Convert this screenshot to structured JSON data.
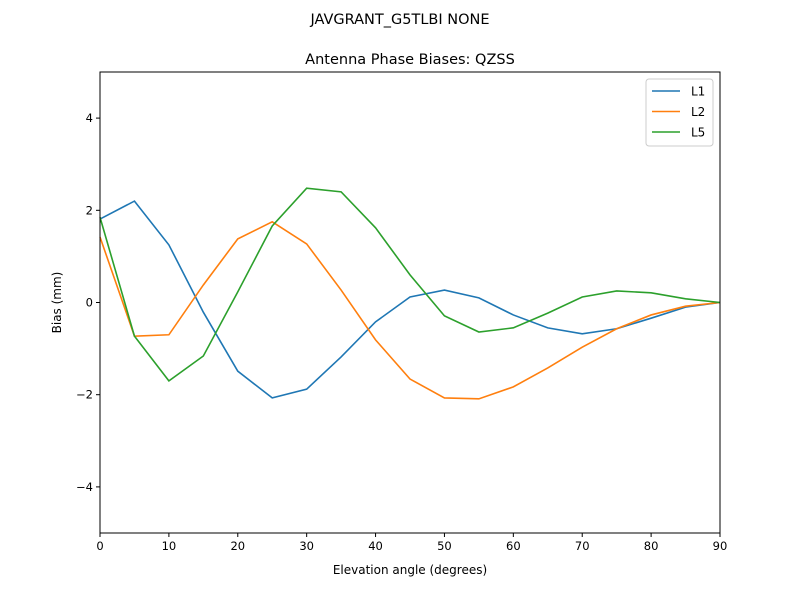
{
  "suptitle": "JAVGRANT_G5TLBI NONE",
  "chart_data": {
    "type": "line",
    "title": "Antenna Phase Biases: QZSS",
    "xlabel": "Elevation angle (degrees)",
    "ylabel": "Bias (mm)",
    "xlim": [
      0,
      90
    ],
    "ylim": [
      -5,
      5
    ],
    "xticks": [
      0,
      10,
      20,
      30,
      40,
      50,
      60,
      70,
      80,
      90
    ],
    "yticks": [
      -4,
      -2,
      0,
      2,
      4
    ],
    "grid": false,
    "legend": "top-right",
    "x": [
      0,
      5,
      10,
      15,
      20,
      25,
      30,
      35,
      40,
      45,
      50,
      55,
      60,
      65,
      70,
      75,
      80,
      85,
      90
    ],
    "series": [
      {
        "name": "L1",
        "color": "#1f77b4",
        "values": [
          1.81,
          2.2,
          1.25,
          -0.21,
          -1.49,
          -2.07,
          -1.88,
          -1.18,
          -0.42,
          0.12,
          0.27,
          0.1,
          -0.27,
          -0.55,
          -0.68,
          -0.57,
          -0.34,
          -0.1,
          0.0
        ]
      },
      {
        "name": "L2",
        "color": "#ff7f0e",
        "values": [
          1.42,
          -0.73,
          -0.7,
          0.38,
          1.38,
          1.75,
          1.27,
          0.27,
          -0.81,
          -1.66,
          -2.07,
          -2.09,
          -1.83,
          -1.42,
          -0.97,
          -0.57,
          -0.27,
          -0.08,
          0.0
        ]
      },
      {
        "name": "L5",
        "color": "#2ca02c",
        "values": [
          1.85,
          -0.73,
          -1.7,
          -1.16,
          0.23,
          1.66,
          2.48,
          2.4,
          1.62,
          0.6,
          -0.29,
          -0.64,
          -0.55,
          -0.23,
          0.12,
          0.25,
          0.21,
          0.08,
          0.0
        ]
      }
    ]
  }
}
